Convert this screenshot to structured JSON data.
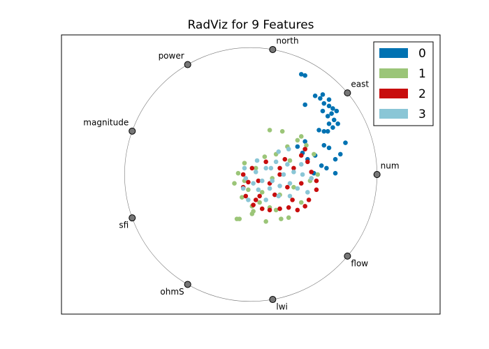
{
  "chart_data": {
    "type": "radviz",
    "title": "RadViz for 9 Features",
    "features": [
      "num",
      "east",
      "north",
      "power",
      "magnitude",
      "sfi",
      "ohmS",
      "lwi",
      "flow"
    ],
    "xlim": [
      -1.5,
      1.5
    ],
    "ylim": [
      -1.1,
      1.1
    ],
    "legend": "upper right",
    "series": [
      {
        "name": "0",
        "color": "#0072b2",
        "x": [
          0.4,
          0.43,
          0.51,
          0.57,
          0.55,
          0.58,
          0.62,
          0.65,
          0.68,
          0.64,
          0.57,
          0.61,
          0.43,
          0.66,
          0.69,
          0.65,
          0.62,
          0.54,
          0.58,
          0.61,
          0.75,
          0.71,
          0.67,
          0.62,
          0.58,
          0.67,
          0.37,
          0.41,
          0.45,
          0.51,
          0.56,
          0.6,
          0.5,
          0.43,
          0.62
        ],
        "y": [
          0.79,
          0.78,
          0.62,
          0.63,
          0.6,
          0.56,
          0.59,
          0.52,
          0.5,
          0.48,
          0.5,
          0.46,
          0.55,
          0.43,
          0.4,
          0.37,
          0.4,
          0.35,
          0.34,
          0.34,
          0.25,
          0.16,
          0.12,
          0.21,
          0.23,
          0.01,
          0.22,
          0.17,
          0.12,
          0.15,
          0.07,
          0.05,
          0.01,
          0.26,
          0.54
        ]
      },
      {
        "name": "1",
        "color": "#9bc578",
        "x": [
          0.15,
          0.25,
          0.4,
          0.44,
          0.11,
          -0.05,
          -0.1,
          -0.13,
          -0.07,
          -0.11,
          -0.09,
          0.01,
          0.02,
          0.12,
          0.24,
          0.3,
          0.07,
          0.15,
          0.23,
          0.34,
          0.47,
          0.53,
          0.5,
          0.29,
          0.2,
          0.04,
          -0.02,
          0.01,
          0.17,
          0.31,
          0.37,
          0.09,
          0.2,
          0.4,
          -0.05
        ],
        "y": [
          0.35,
          0.34,
          0.3,
          0.23,
          0.14,
          0.09,
          0.01,
          -0.07,
          -0.18,
          -0.35,
          -0.35,
          -0.31,
          -0.29,
          -0.37,
          -0.35,
          -0.34,
          -0.22,
          -0.26,
          -0.16,
          -0.1,
          -0.05,
          0.0,
          0.16,
          0.22,
          0.16,
          0.05,
          -0.12,
          -0.25,
          -0.03,
          0.11,
          0.27,
          -0.14,
          -0.28,
          -0.22,
          -0.05
        ]
      },
      {
        "name": "2",
        "color": "#c80d0d",
        "x": [
          0.43,
          0.4,
          0.27,
          0.12,
          0.01,
          -0.06,
          -0.06,
          -0.04,
          0.02,
          0.09,
          0.15,
          0.23,
          0.3,
          0.37,
          0.43,
          0.46,
          0.52,
          0.52,
          0.48,
          0.34,
          0.23,
          0.15,
          0.06,
          0.19,
          0.29,
          0.4,
          0.07,
          0.33,
          -0.02,
          0.45,
          0.23,
          0.04
        ],
        "y": [
          0.2,
          0.15,
          0.12,
          0.1,
          0.05,
          0.0,
          -0.1,
          -0.17,
          -0.24,
          -0.27,
          -0.28,
          -0.27,
          -0.26,
          -0.28,
          -0.25,
          -0.2,
          -0.12,
          -0.05,
          0.02,
          0.05,
          0.0,
          -0.07,
          -0.05,
          -0.16,
          -0.1,
          -0.07,
          -0.17,
          -0.2,
          -0.06,
          0.1,
          0.05,
          -0.2
        ]
      },
      {
        "name": "3",
        "color": "#8ac6d6",
        "x": [
          0.22,
          0.3,
          0.2,
          0.12,
          0.04,
          -0.04,
          -0.06,
          -0.02,
          0.06,
          0.15,
          0.23,
          0.31,
          0.37,
          0.45,
          0.41,
          0.34,
          0.26,
          0.17,
          0.09,
          0.02,
          0.16,
          0.29,
          0.4,
          0.22,
          0.31,
          0.12,
          0.48,
          -0.05,
          0.05
        ],
        "y": [
          0.18,
          0.2,
          0.1,
          0.05,
          0.02,
          -0.03,
          -0.11,
          -0.2,
          -0.12,
          -0.11,
          -0.09,
          -0.07,
          -0.11,
          -0.14,
          0.0,
          0.02,
          0.0,
          -0.05,
          -0.05,
          -0.07,
          0.05,
          0.08,
          0.08,
          -0.17,
          -0.17,
          -0.2,
          -0.03,
          0.05,
          0.11
        ]
      }
    ]
  }
}
